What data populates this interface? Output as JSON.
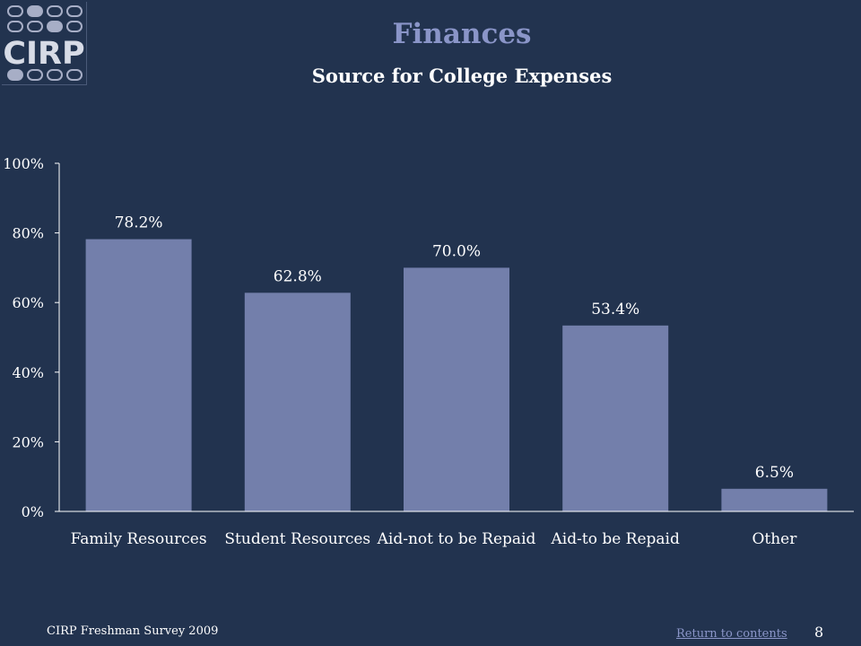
{
  "header": {
    "logo_text": "CIRP",
    "title": "Finances",
    "subtitle": "Source for College Expenses"
  },
  "footer": {
    "survey": "CIRP Freshman Survey 2009",
    "return_link": "Return to contents",
    "page_number": "8"
  },
  "colors": {
    "background": "#22334f",
    "bar": "#737fab",
    "title": "#8a95c8",
    "text": "#ffffff"
  },
  "chart_data": {
    "type": "bar",
    "categories": [
      "Family Resources",
      "Student Resources",
      "Aid-not to be Repaid",
      "Aid-to be Repaid",
      "Other"
    ],
    "values": [
      78.2,
      62.8,
      70.0,
      53.4,
      6.5
    ],
    "data_labels": [
      "78.2%",
      "62.8%",
      "70.0%",
      "53.4%",
      "6.5%"
    ],
    "yticks": [
      "0%",
      "20%",
      "40%",
      "60%",
      "80%",
      "100%"
    ],
    "ylim": [
      0,
      100
    ],
    "grid": false,
    "legend": "none"
  }
}
